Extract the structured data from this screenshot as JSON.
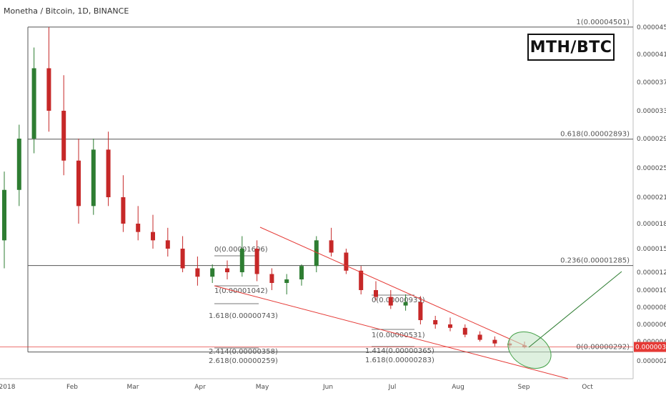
{
  "header": {
    "title": "Monetha / Bitcoin, 1D, BINANCE"
  },
  "badge": {
    "text": "MTH/BTC"
  },
  "current_price": {
    "label": "0.00000344",
    "value": 3.44e-06,
    "color": "#e53935"
  },
  "colors": {
    "up": "#2e7d32",
    "down": "#c62828",
    "wedge": "#e53935",
    "projection": "#2e7d32",
    "ellipse_fill": "#c8e6c9",
    "ellipse_stroke": "#43a047",
    "fib_line": "#555555"
  },
  "chart_data": {
    "type": "candlestick",
    "title": "Monetha / Bitcoin, 1D, BINANCE",
    "y_axis": {
      "ticks": [
        4.5e-05,
        4.1e-05,
        3.7e-05,
        3.3e-05,
        2.9e-05,
        2.5e-05,
        2.1e-05,
        1.8e-05,
        1.5e-05,
        1.2e-05,
        1e-05,
        8e-06,
        6e-06,
        4e-06,
        2e-06
      ],
      "tick_labels": [
        "0.00004500",
        "0.00004100",
        "0.00003700",
        "0.00003300",
        "0.00002900",
        "0.00002500",
        "0.00002100",
        "0.00001800",
        "0.00001500",
        "0.00001200",
        "0.00001000",
        "0.00000800",
        "0.00000600",
        "0.00000400",
        "0.00000200"
      ]
    },
    "x_axis": {
      "labels": [
        "2018",
        "Feb",
        "Mar",
        "Apr",
        "May",
        "Jun",
        "Jul",
        "Aug",
        "Sep",
        "Oct"
      ]
    },
    "fib_levels": [
      {
        "label": "1(0.00004501)",
        "value": 4.501e-05
      },
      {
        "label": "0.618(0.00002893)",
        "value": 2.893e-05
      },
      {
        "label": "0.236(0.00001285)",
        "value": 1.285e-05
      },
      {
        "label": "0(0.00000292)",
        "value": 2.92e-06
      }
    ],
    "fib_extension_labels": [
      "0(0.00001606)",
      "1(0.00001042)",
      "1.618(0.00000743)",
      "2.414(0.00000358)",
      "2.618(0.00000259)",
      "0(0.00000933)",
      "1(0.00000531)",
      "1.414(0.00000365)",
      "1.618(0.00000283)"
    ],
    "candles_ohlc": [
      [
        1.6e-05,
        2.45e-05,
        1.25e-05,
        2.2e-05
      ],
      [
        2.2e-05,
        3.1e-05,
        2e-05,
        2.9e-05
      ],
      [
        2.9e-05,
        4.2e-05,
        2.7e-05,
        3.9e-05
      ],
      [
        3.9e-05,
        4.5e-05,
        3e-05,
        3.3e-05
      ],
      [
        3.3e-05,
        3.8e-05,
        2.4e-05,
        2.6e-05
      ],
      [
        2.6e-05,
        2.9e-05,
        1.8e-05,
        2e-05
      ],
      [
        2e-05,
        2.9e-05,
        1.9e-05,
        2.75e-05
      ],
      [
        2.75e-05,
        3e-05,
        2e-05,
        2.1e-05
      ],
      [
        2.1e-05,
        2.4e-05,
        1.7e-05,
        1.8e-05
      ],
      [
        1.8e-05,
        2e-05,
        1.6e-05,
        1.7e-05
      ],
      [
        1.7e-05,
        1.9e-05,
        1.5e-05,
        1.6e-05
      ],
      [
        1.6e-05,
        1.75e-05,
        1.4e-05,
        1.5e-05
      ],
      [
        1.5e-05,
        1.65e-05,
        1.2e-05,
        1.25e-05
      ],
      [
        1.25e-05,
        1.4e-05,
        1.05e-05,
        1.15e-05
      ],
      [
        1.15e-05,
        1.3e-05,
        1.08e-05,
        1.25e-05
      ],
      [
        1.25e-05,
        1.35e-05,
        1.12e-05,
        1.2e-05
      ],
      [
        1.2e-05,
        1.65e-05,
        1.15e-05,
        1.5e-05
      ],
      [
        1.5e-05,
        1.6e-05,
        1.1e-05,
        1.18e-05
      ],
      [
        1.18e-05,
        1.25e-05,
        1e-05,
        1.08e-05
      ],
      [
        1.08e-05,
        1.18e-05,
        9.5e-06,
        1.12e-05
      ],
      [
        1.12e-05,
        1.3e-05,
        1.05e-05,
        1.28e-05
      ],
      [
        1.28e-05,
        1.65e-05,
        1.2e-05,
        1.6e-05
      ],
      [
        1.6e-05,
        1.75e-05,
        1.4e-05,
        1.45e-05
      ],
      [
        1.45e-05,
        1.5e-05,
        1.18e-05,
        1.22e-05
      ],
      [
        1.22e-05,
        1.28e-05,
        9.5e-06,
        1e-05
      ],
      [
        1e-05,
        1.1e-05,
        8.8e-06,
        9.2e-06
      ],
      [
        9.2e-06,
        1e-05,
        7.8e-06,
        8.2e-06
      ],
      [
        8.2e-06,
        9.5e-06,
        7.6e-06,
        8.6e-06
      ],
      [
        8.6e-06,
        9.3e-06,
        6e-06,
        6.5e-06
      ],
      [
        6.5e-06,
        7e-06,
        5.5e-06,
        6e-06
      ],
      [
        6e-06,
        6.8e-06,
        5.2e-06,
        5.6e-06
      ],
      [
        5.6e-06,
        6e-06,
        4.5e-06,
        4.8e-06
      ],
      [
        4.8e-06,
        5.2e-06,
        4e-06,
        4.2e-06
      ],
      [
        4.2e-06,
        4.6e-06,
        3.5e-06,
        3.8e-06
      ],
      [
        3.8e-06,
        4.2e-06,
        3.3e-06,
        3.6e-06
      ],
      [
        3.6e-06,
        4e-06,
        3.3e-06,
        3.4e-06
      ]
    ]
  }
}
